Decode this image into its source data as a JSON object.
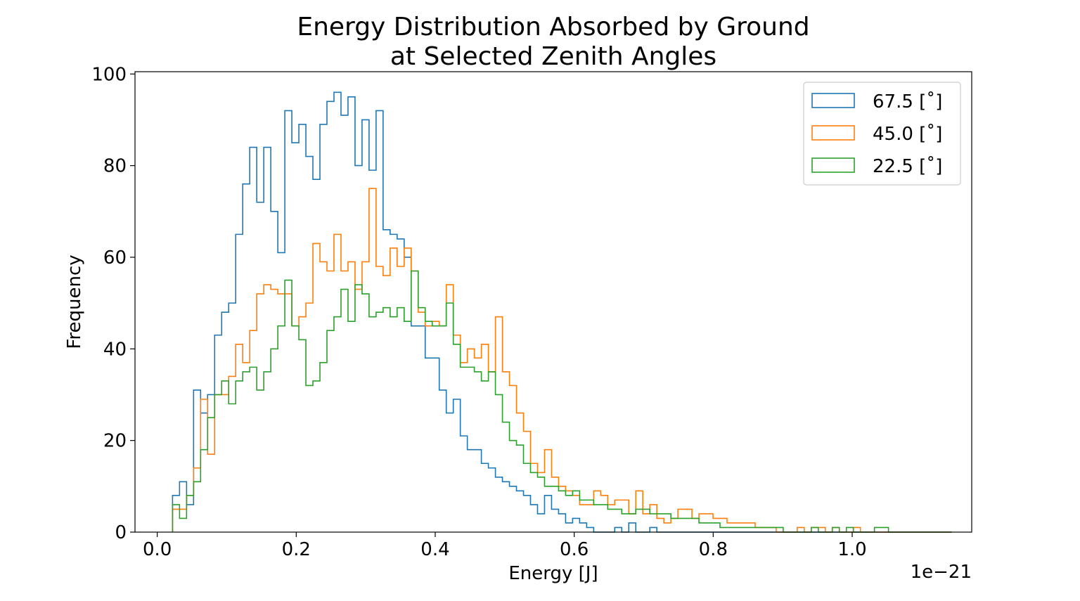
{
  "chart_data": {
    "type": "histogram",
    "title": [
      "Energy Distribution Absorbed by Ground",
      "at Selected Zenith Angles"
    ],
    "xlabel": "Energy [J]",
    "ylabel": "Frequency",
    "x_offset_label": "1e−21",
    "xlim": [
      -0.032,
      1.172
    ],
    "ylim": [
      0,
      100.5
    ],
    "x_ticks": [
      0.0,
      0.2,
      0.4,
      0.6,
      0.8,
      1.0
    ],
    "x_tick_labels": [
      "0.0",
      "0.2",
      "0.4",
      "0.6",
      "0.8",
      "1.0"
    ],
    "y_ticks": [
      0,
      20,
      40,
      60,
      80,
      100
    ],
    "y_tick_labels": [
      "0",
      "20",
      "40",
      "60",
      "80",
      "100"
    ],
    "grid": false,
    "legend_position": "top-right",
    "bin_start": 0.022,
    "bin_width": 0.0101,
    "series": [
      {
        "name": "67.5 [˚]",
        "color": "#1f77b4",
        "counts": [
          8,
          11,
          6,
          31,
          26,
          30,
          43,
          48,
          50,
          65,
          76,
          84,
          72,
          84,
          70,
          61,
          92,
          85,
          89,
          82,
          77,
          89,
          94,
          96,
          91,
          95,
          80,
          90,
          79,
          92,
          66,
          65,
          64,
          60,
          45,
          45,
          38,
          38,
          31,
          26,
          29,
          21,
          18,
          18,
          15,
          14,
          12,
          11,
          10,
          9,
          8,
          6,
          4,
          8,
          5,
          4,
          2,
          3,
          2,
          1,
          0,
          0,
          0,
          1,
          0,
          2,
          0,
          0,
          1,
          0,
          0,
          0,
          0,
          0,
          0,
          0,
          0,
          0,
          0,
          0,
          0,
          0,
          0,
          0,
          0,
          0,
          0,
          0,
          0,
          0,
          0,
          0,
          0,
          0,
          0,
          0,
          0,
          0,
          0,
          0,
          0,
          0,
          0,
          0,
          0,
          0,
          0,
          0,
          0,
          0,
          0
        ]
      },
      {
        "name": "45.0 [˚]",
        "color": "#ff7f0e",
        "counts": [
          5,
          5,
          8,
          14,
          29,
          17,
          30,
          30,
          34,
          41,
          37,
          44,
          52,
          54,
          53,
          52,
          52,
          45,
          47,
          50,
          63,
          59,
          57,
          65,
          57,
          59,
          53,
          59,
          75,
          58,
          56,
          62,
          58,
          62,
          57,
          48,
          45,
          46,
          45,
          54,
          43,
          37,
          40,
          38,
          41,
          35,
          47,
          35,
          32,
          26,
          22,
          15,
          13,
          18,
          12,
          10,
          9,
          8,
          6,
          6,
          9,
          8,
          6,
          7,
          7,
          4,
          9,
          4,
          6,
          3,
          2,
          3,
          5,
          5,
          3,
          4,
          4,
          3,
          3,
          2,
          2,
          2,
          2,
          1,
          1,
          1,
          0,
          0,
          0,
          1,
          0,
          1,
          1,
          0,
          1,
          0,
          0,
          1,
          0,
          0,
          0,
          0,
          0,
          0,
          0,
          0,
          0,
          0,
          0,
          0,
          0
        ]
      },
      {
        "name": "22.5 [˚]",
        "color": "#2ca02c",
        "counts": [
          6,
          3,
          8,
          11,
          18,
          25,
          30,
          33,
          28,
          33,
          35,
          36,
          31,
          35,
          40,
          45,
          55,
          45,
          42,
          32,
          33,
          37,
          44,
          47,
          53,
          46,
          54,
          52,
          47,
          48,
          49,
          47,
          49,
          46,
          57,
          49,
          46,
          45,
          45,
          50,
          41,
          36,
          36,
          35,
          33,
          35,
          30,
          24,
          20,
          19,
          15,
          13,
          12,
          10,
          10,
          9,
          8,
          9,
          7,
          7,
          6,
          6,
          5,
          5,
          4,
          4,
          5,
          5,
          4,
          4,
          4,
          3,
          3,
          3,
          3,
          2,
          2,
          2,
          1,
          1,
          1,
          1,
          1,
          1,
          1,
          1,
          1,
          0,
          0,
          0,
          0,
          1,
          0,
          0,
          1,
          0,
          1,
          0,
          0,
          0,
          1,
          1,
          0,
          0,
          0,
          0,
          0,
          0,
          0,
          0,
          0
        ]
      }
    ]
  }
}
